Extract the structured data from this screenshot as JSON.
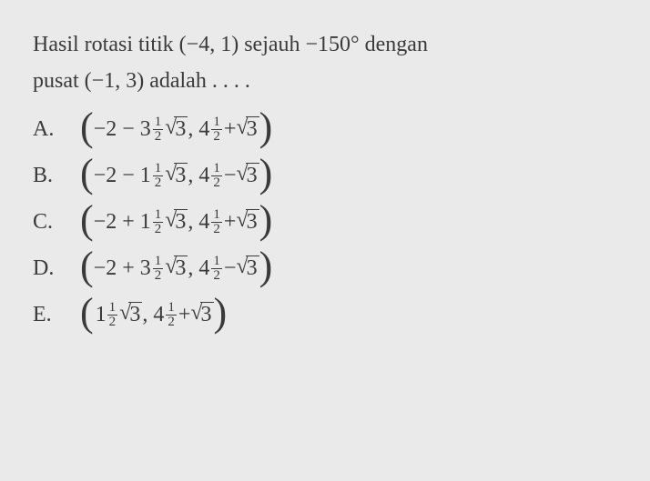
{
  "stem": {
    "line1_a": "Hasil rotasi titik (",
    "point1": "−4, 1",
    "line1_b": ") sejauh ",
    "angle": "−150°",
    "line1_c": " dengan",
    "line2_a": "pusat (",
    "point2": "−1, 3",
    "line2_b": ") adalah . . . ."
  },
  "labels": {
    "A": "A.",
    "B": "B.",
    "C": "C.",
    "D": "D.",
    "E": "E."
  },
  "frac": {
    "num": "1",
    "den": "2"
  },
  "A": {
    "p1a": "−2 − 3",
    "sq1": "3",
    "mid": ", 4",
    "p2a": " + ",
    "sq2": "3"
  },
  "B": {
    "p1a": "−2 − 1",
    "sq1": "3",
    "mid": ", 4",
    "p2a": " − ",
    "sq2": "3"
  },
  "C": {
    "p1a": "−2 + 1",
    "sq1": "3",
    "mid": ", 4",
    "p2a": " + ",
    "sq2": "3"
  },
  "D": {
    "p1a": "−2 + 3",
    "sq1": "3",
    "mid": ", 4",
    "p2a": " − ",
    "sq2": "3"
  },
  "E": {
    "p1a": "1",
    "sq1": "3",
    "mid": ", 4",
    "p2a": " + ",
    "sq2": "3"
  },
  "paren": {
    "l": "(",
    "r": ")"
  }
}
